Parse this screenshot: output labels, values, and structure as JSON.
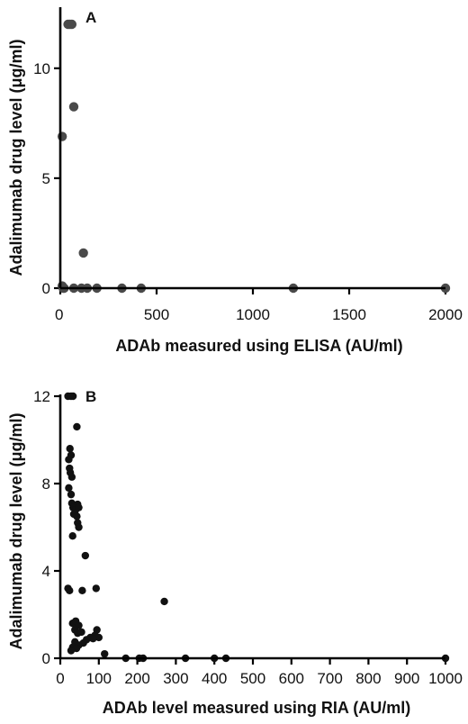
{
  "chart_data": [
    {
      "type": "scatter",
      "panel_label": "A",
      "xlabel": "ADAb measured using  ELISA (AU/ml)",
      "ylabel": "Adalimumab drug level (μg/ml)",
      "xlim": [
        0,
        2000
      ],
      "ylim": [
        0,
        12
      ],
      "xticks": [
        0,
        500,
        1000,
        1500,
        2000
      ],
      "yticks": [
        0,
        5,
        10
      ],
      "marker_color": "#4a4a4a",
      "points": [
        {
          "x": 40,
          "y": 12
        },
        {
          "x": 50,
          "y": 12
        },
        {
          "x": 60,
          "y": 12
        },
        {
          "x": 70,
          "y": 8.25
        },
        {
          "x": 10,
          "y": 6.9
        },
        {
          "x": 120,
          "y": 1.6
        },
        {
          "x": 10,
          "y": 0.1
        },
        {
          "x": 15,
          "y": 0
        },
        {
          "x": 20,
          "y": 0
        },
        {
          "x": 70,
          "y": 0
        },
        {
          "x": 110,
          "y": 0
        },
        {
          "x": 140,
          "y": 0
        },
        {
          "x": 190,
          "y": 0
        },
        {
          "x": 320,
          "y": 0
        },
        {
          "x": 420,
          "y": 0
        },
        {
          "x": 1210,
          "y": 0
        },
        {
          "x": 2000,
          "y": 0
        }
      ]
    },
    {
      "type": "scatter",
      "panel_label": "B",
      "xlabel": "ADAb level measured using RIA (AU/ml)",
      "ylabel": "Adalimumab drug level (μg/ml)",
      "xlim": [
        0,
        1000
      ],
      "ylim": [
        0,
        12
      ],
      "xticks": [
        0,
        100,
        200,
        300,
        400,
        500,
        600,
        700,
        800,
        900,
        1000
      ],
      "yticks": [
        0,
        4,
        8,
        12
      ],
      "marker_color": "#111111",
      "points": [
        {
          "x": 20,
          "y": 12
        },
        {
          "x": 28,
          "y": 12
        },
        {
          "x": 33,
          "y": 12
        },
        {
          "x": 43,
          "y": 10.6
        },
        {
          "x": 25,
          "y": 9.6
        },
        {
          "x": 28,
          "y": 9.3
        },
        {
          "x": 22,
          "y": 9.1
        },
        {
          "x": 24,
          "y": 8.7
        },
        {
          "x": 26,
          "y": 8.5
        },
        {
          "x": 30,
          "y": 8.3
        },
        {
          "x": 22,
          "y": 7.8
        },
        {
          "x": 28,
          "y": 7.5
        },
        {
          "x": 30,
          "y": 7.1
        },
        {
          "x": 38,
          "y": 7.0
        },
        {
          "x": 45,
          "y": 7.05
        },
        {
          "x": 33,
          "y": 6.9
        },
        {
          "x": 40,
          "y": 6.8
        },
        {
          "x": 48,
          "y": 6.9
        },
        {
          "x": 35,
          "y": 6.6
        },
        {
          "x": 43,
          "y": 6.5
        },
        {
          "x": 45,
          "y": 6.2
        },
        {
          "x": 48,
          "y": 6.0
        },
        {
          "x": 32,
          "y": 5.6
        },
        {
          "x": 65,
          "y": 4.7
        },
        {
          "x": 20,
          "y": 3.2
        },
        {
          "x": 24,
          "y": 3.1
        },
        {
          "x": 57,
          "y": 3.1
        },
        {
          "x": 93,
          "y": 3.2
        },
        {
          "x": 270,
          "y": 2.6
        },
        {
          "x": 32,
          "y": 1.6
        },
        {
          "x": 40,
          "y": 1.7
        },
        {
          "x": 48,
          "y": 1.5
        },
        {
          "x": 38,
          "y": 1.3
        },
        {
          "x": 45,
          "y": 1.15
        },
        {
          "x": 55,
          "y": 1.2
        },
        {
          "x": 95,
          "y": 1.3
        },
        {
          "x": 78,
          "y": 0.95
        },
        {
          "x": 90,
          "y": 1.05
        },
        {
          "x": 100,
          "y": 0.95
        },
        {
          "x": 68,
          "y": 0.85
        },
        {
          "x": 85,
          "y": 0.9
        },
        {
          "x": 38,
          "y": 0.75
        },
        {
          "x": 48,
          "y": 0.6
        },
        {
          "x": 60,
          "y": 0.7
        },
        {
          "x": 32,
          "y": 0.5
        },
        {
          "x": 42,
          "y": 0.45
        },
        {
          "x": 28,
          "y": 0.35
        },
        {
          "x": 115,
          "y": 0.2
        },
        {
          "x": 170,
          "y": 0
        },
        {
          "x": 205,
          "y": 0
        },
        {
          "x": 215,
          "y": 0
        },
        {
          "x": 325,
          "y": 0
        },
        {
          "x": 400,
          "y": 0
        },
        {
          "x": 430,
          "y": 0
        },
        {
          "x": 1000,
          "y": 0
        }
      ]
    }
  ]
}
